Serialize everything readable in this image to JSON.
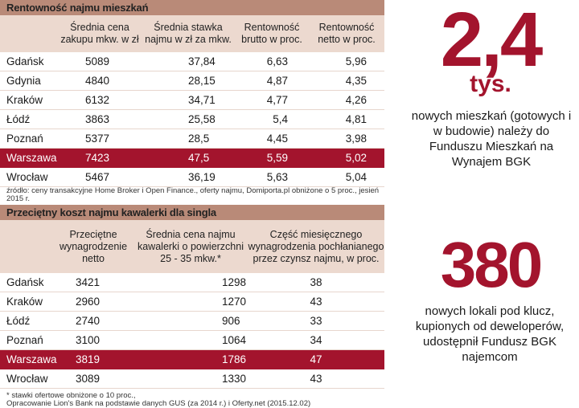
{
  "table1": {
    "title": "Rentowność najmu mieszkań",
    "headers": [
      "",
      "Średnia cena zakupu mkw. w zł",
      "Średnia stawka najmu w zł za mkw.",
      "Rentowność brutto w proc.",
      "Rentowność netto w proc."
    ],
    "rows": [
      [
        "Gdańsk",
        "5089",
        "37,84",
        "6,63",
        "5,96"
      ],
      [
        "Gdynia",
        "4840",
        "28,15",
        "4,87",
        "4,35"
      ],
      [
        "Kraków",
        "6132",
        "34,71",
        "4,77",
        "4,26"
      ],
      [
        "Łódź",
        "3863",
        "25,58",
        "5,4",
        "4,81"
      ],
      [
        "Poznań",
        "5377",
        "28,5",
        "4,45",
        "3,98"
      ],
      [
        "Warszawa",
        "7423",
        "47,5",
        "5,59",
        "5,02"
      ],
      [
        "Wrocław",
        "5467",
        "36,19",
        "5,63",
        "5,04"
      ]
    ],
    "highlight_row": "Warszawa",
    "source": "źródło: ceny transakcyjne Home Broker i Open Finance., oferty najmu, Domiporta.pl obniżone o 5 proc., jesień 2015 r."
  },
  "table2": {
    "title": "Przeciętny koszt najmu kawalerki dla singla",
    "headers": [
      "",
      "Przeciętne wynagrodzenie netto",
      "Średnia cena najmu kawalerki o powierzchni 25 - 35 mkw.*",
      "Część miesięcznego wynagrodzenia pochłanianego przez czynsz najmu, w proc."
    ],
    "rows": [
      [
        "Gdańsk",
        "3421",
        "1298",
        "38"
      ],
      [
        "Kraków",
        "2960",
        "1270",
        "43"
      ],
      [
        "Łódź",
        "2740",
        "906",
        "33"
      ],
      [
        "Poznań",
        "3100",
        "1064",
        "34"
      ],
      [
        "Warszawa",
        "3819",
        "1786",
        "47"
      ],
      [
        "Wrocław",
        "3089",
        "1330",
        "43"
      ]
    ],
    "highlight_row": "Warszawa",
    "footnote1": "* stawki ofertowe obniżone o 10 proc.,",
    "footnote2": "Opracowanie Lion's Bank na podstawie danych GUS (za 2014 r.) i Oferty.net (2015.12.02)"
  },
  "stat1": {
    "number": "2,4",
    "unit": "tys.",
    "text": "nowych mieszkań (gotowych i w budowie) należy do Funduszu Mieszkań na Wynajem BGK"
  },
  "stat2": {
    "number": "380",
    "text": "nowych lokali pod klucz, kupionych od deweloperów, udostępnił Fundusz BGK najemcom"
  },
  "colors": {
    "accent": "#a3142d",
    "banner": "#b98a78",
    "header_bg": "#ecd9cf"
  }
}
